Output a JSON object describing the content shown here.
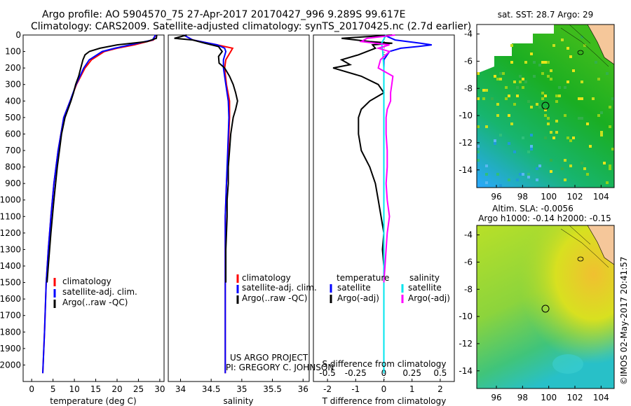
{
  "title_line1": "Argo profile: AO 5904570_75 27-Apr-2017 20170427_996 9.289S 99.617E",
  "title_line2": "Climatology: CARS2009. Satellite-adjusted climatology: synTS_20170425.nc (2.7d earlier)",
  "credit_line1": "US ARGO PROJECT",
  "credit_line2": "PI: GREGORY C. JOHNSON",
  "timestamp": "©IMOS 02-May-2017 20:41:57",
  "colors": {
    "climatology": "#ff0000",
    "satellite": "#0000ff",
    "argo": "#000000",
    "argo_salinity_diff": "#ff00ff",
    "satellite_salinity_diff": "#00e5ee",
    "land": "#f5c79a"
  },
  "legend": {
    "climatology": "climatology",
    "satellite": "satellite-adj. clim.",
    "argo": "Argo(..raw -QC)",
    "temperature_head": "temperature",
    "salinity_head": "salinity",
    "diff_satellite": "satellite",
    "diff_argo": "Argo(-adj)"
  },
  "chart_data": [
    {
      "type": "line",
      "ylabel": "",
      "xlabel": "temperature (deg C)",
      "xlim": [
        -2,
        31
      ],
      "ylim": [
        2100,
        0
      ],
      "xticks": [
        "0",
        "5",
        "10",
        "15",
        "20",
        "25",
        "30"
      ],
      "yticks": [
        "0",
        "100",
        "200",
        "300",
        "400",
        "500",
        "600",
        "700",
        "800",
        "900",
        "1000",
        "1100",
        "1200",
        "1300",
        "1400",
        "1500",
        "1600",
        "1700",
        "1800",
        "1900",
        "2000"
      ],
      "series": [
        {
          "name": "climatology",
          "y": [
            0,
            30,
            60,
            80,
            100,
            150,
            200,
            300,
            400,
            500,
            700,
            900,
            1100,
            1300,
            1500,
            1800,
            2050
          ],
          "x": [
            29,
            28.5,
            24,
            20,
            17,
            14,
            12.5,
            10.5,
            9,
            7.5,
            6.2,
            5.2,
            4.5,
            3.9,
            3.4,
            3.0,
            2.6
          ]
        },
        {
          "name": "satellite-adj. clim.",
          "y": [
            0,
            30,
            60,
            80,
            100,
            150,
            200,
            300,
            400,
            500,
            700,
            900,
            1100,
            1300,
            1500,
            1800,
            2050
          ],
          "x": [
            29,
            28.3,
            23,
            19.5,
            16.5,
            13.5,
            12.2,
            10.4,
            9,
            7.5,
            6.2,
            5.2,
            4.5,
            3.9,
            3.4,
            3.0,
            2.6
          ]
        },
        {
          "name": "Argo(..raw -QC)",
          "y": [
            0,
            20,
            40,
            60,
            80,
            100,
            120,
            150,
            200,
            250,
            300,
            350,
            400,
            450,
            500,
            600,
            700,
            800,
            1000,
            1200,
            1400,
            1500
          ],
          "x": [
            29.3,
            29.2,
            27,
            20,
            16,
            13.5,
            12.5,
            12,
            11.5,
            11,
            10.3,
            9.8,
            9.2,
            8.5,
            7.8,
            7.0,
            6.5,
            6.0,
            5.2,
            4.5,
            3.9,
            3.6
          ]
        }
      ]
    },
    {
      "type": "line",
      "xlabel": "salinity",
      "xlim": [
        33.8,
        36.1
      ],
      "ylim": [
        2100,
        0
      ],
      "xticks": [
        "34",
        "34.5",
        "35",
        "35.5",
        "36"
      ],
      "series": [
        {
          "name": "climatology",
          "y": [
            0,
            30,
            60,
            80,
            100,
            150,
            200,
            300,
            400,
            500,
            700,
            900,
            1100,
            1300,
            1500,
            1800,
            2050
          ],
          "x": [
            34.05,
            34.2,
            34.6,
            34.85,
            34.82,
            34.74,
            34.72,
            34.75,
            34.8,
            34.8,
            34.78,
            34.75,
            34.73,
            34.73,
            34.73,
            34.73,
            34.73
          ]
        },
        {
          "name": "satellite-adj. clim.",
          "y": [
            0,
            30,
            60,
            80,
            100,
            150,
            200,
            300,
            400,
            500,
            700,
            900,
            1100,
            1300,
            1500,
            1800,
            2050
          ],
          "x": [
            34.05,
            34.2,
            34.6,
            34.72,
            34.74,
            34.7,
            34.7,
            34.74,
            34.78,
            34.79,
            34.77,
            34.75,
            34.73,
            34.73,
            34.73,
            34.73,
            34.73
          ]
        },
        {
          "name": "Argo(..raw -QC)",
          "y": [
            0,
            10,
            20,
            30,
            50,
            70,
            100,
            130,
            170,
            200,
            250,
            300,
            350,
            400,
            450,
            500,
            600,
            700,
            800,
            900,
            1000,
            1100,
            1200,
            1300,
            1400,
            1500
          ],
          "x": [
            34.1,
            34.0,
            33.9,
            34.2,
            34.4,
            34.62,
            34.68,
            34.62,
            34.63,
            34.72,
            34.8,
            34.86,
            34.9,
            34.93,
            34.9,
            34.86,
            34.82,
            34.8,
            34.78,
            34.78,
            34.76,
            34.76,
            34.75,
            34.74,
            34.74,
            34.74
          ]
        }
      ]
    },
    {
      "type": "line",
      "xlabel": "T difference from climatology",
      "xlabel_top": "S difference from climatology",
      "xlim": [
        -2.5,
        2.5
      ],
      "ylim": [
        2100,
        0
      ],
      "xticks": [
        "-2",
        "-1",
        "0",
        "1",
        "2"
      ],
      "xticks_top": [
        "-0.5",
        "-0.25",
        "0",
        "0.25",
        "0.5"
      ],
      "series": [
        {
          "name": "temperature satellite",
          "y": [
            0,
            30,
            50,
            60,
            70,
            80,
            100,
            150,
            200,
            300,
            500,
            1000,
            2050
          ],
          "x": [
            0,
            0.4,
            1.3,
            1.7,
            1.2,
            0.6,
            0.2,
            0,
            0,
            0,
            0,
            0,
            0
          ]
        },
        {
          "name": "temperature Argo(-adj)",
          "y": [
            0,
            20,
            40,
            50,
            60,
            80,
            100,
            120,
            150,
            180,
            200,
            250,
            300,
            350,
            400,
            450,
            500,
            600,
            700,
            800,
            900,
            1000,
            1100,
            1200,
            1300,
            1400,
            1500
          ],
          "x": [
            0.3,
            -1.5,
            -0.5,
            0.3,
            -0.4,
            -0.3,
            -0.6,
            -0.9,
            -1.5,
            -1.2,
            -1.8,
            -0.8,
            -0.2,
            0,
            -0.5,
            -0.8,
            -0.9,
            -0.9,
            -0.8,
            -0.5,
            -0.3,
            -0.2,
            -0.1,
            0,
            -0.05,
            0,
            0
          ]
        },
        {
          "name": "salinity satellite",
          "y": [
            0,
            50,
            100,
            200,
            400,
            2050
          ],
          "x": [
            0.02,
            -0.02,
            -0.01,
            0,
            0,
            0
          ]
        },
        {
          "name": "salinity Argo(-adj)",
          "y": [
            0,
            20,
            40,
            60,
            80,
            100,
            150,
            200,
            250,
            300,
            350,
            400,
            450,
            500,
            600,
            700,
            800,
            900,
            1000,
            1100,
            1200,
            1300,
            1400,
            1500
          ],
          "x": [
            0.1,
            -0.15,
            -0.2,
            0.05,
            -0.05,
            0.05,
            -0.03,
            -0.05,
            0.08,
            0.07,
            0.06,
            0.06,
            0.03,
            0.02,
            0.02,
            0.03,
            0.03,
            0.02,
            0.03,
            0.05,
            0.03,
            0.02,
            0.01,
            0.0
          ]
        }
      ]
    },
    {
      "type": "heatmap",
      "title": "sat. SST: 28.7 Argo: 29",
      "xlim": [
        94.5,
        105
      ],
      "ylim": [
        -15.3,
        -3.3
      ],
      "xticks": [
        "96",
        "98",
        "100",
        "102",
        "104"
      ],
      "yticks": [
        "-4",
        "-6",
        "-8",
        "-10",
        "-12",
        "-14"
      ],
      "marker": {
        "lon": 99.6,
        "lat": -9.3
      }
    },
    {
      "type": "heatmap",
      "title": "Altim. SLA: -0.0056",
      "subtitle": "Argo h1000: -0.14 h2000: -0.15",
      "xlim": [
        94.5,
        105
      ],
      "ylim": [
        -15.3,
        -3.3
      ],
      "xticks": [
        "96",
        "98",
        "100",
        "102",
        "104"
      ],
      "yticks": [
        "-4",
        "-6",
        "-8",
        "-10",
        "-12",
        "-14"
      ],
      "marker": {
        "lon": 99.6,
        "lat": -9.3
      }
    }
  ]
}
